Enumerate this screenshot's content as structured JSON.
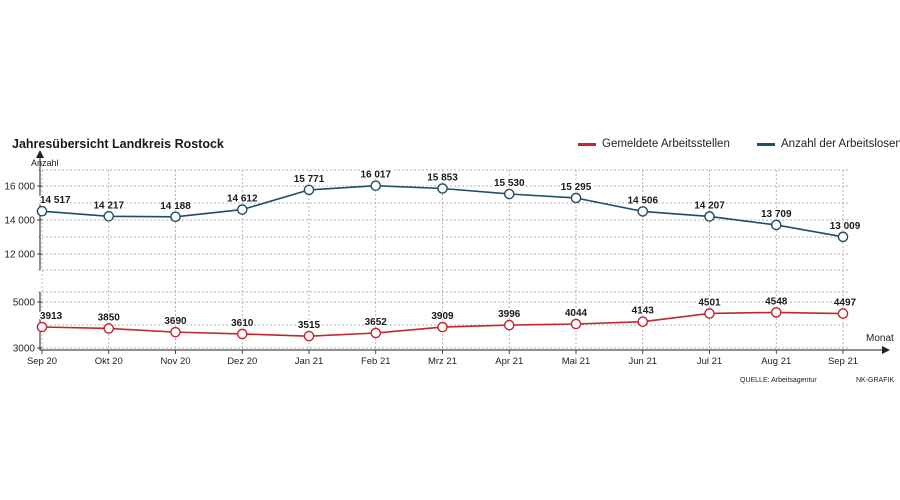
{
  "header": {
    "title": "Jahresübersicht Landkreis Rostock",
    "legend": [
      {
        "label": "Gemeldete Arbeitsstellen",
        "color": "#c0282d"
      },
      {
        "label": "Anzahl der Arbeitslosen",
        "color": "#1f4e66"
      }
    ]
  },
  "footer": {
    "source": "QUELLE: Arbeitsagentur",
    "credit": "NK-GRAFIK"
  },
  "chart_data": {
    "type": "line",
    "categories": [
      "Sep 20",
      "Okt 20",
      "Nov 20",
      "Dez 20",
      "Jan 21",
      "Feb 21",
      "Mrz 21",
      "Apr 21",
      "Mai 21",
      "Jun 21",
      "Jul 21",
      "Aug 21",
      "Sep 21"
    ],
    "xlabel": "Monat",
    "ylabel": "Anzahl",
    "grid": true,
    "legend_position": "top-right",
    "panels": [
      {
        "series_name": "Anzahl der Arbeitslosen",
        "color": "#1f4e66",
        "ylim": [
          12000,
          16000
        ],
        "yticks": [
          12000,
          14000,
          16000
        ],
        "ytick_labels": [
          "12 000",
          "14 000",
          "16 000"
        ],
        "values": [
          14517,
          14217,
          14188,
          14612,
          15771,
          16017,
          15853,
          15530,
          15295,
          14506,
          14207,
          13709,
          13009
        ],
        "labels": [
          "14 517",
          "14 217",
          "14 188",
          "14 612",
          "15 771",
          "16 017",
          "15 853",
          "15 530",
          "15 295",
          "14 506",
          "14 207",
          "13 709",
          "13 009"
        ]
      },
      {
        "series_name": "Gemeldete Arbeitsstellen",
        "color": "#c0282d",
        "ylim": [
          3000,
          5000
        ],
        "yticks": [
          3000,
          5000
        ],
        "ytick_labels": [
          "3000",
          "5000"
        ],
        "values": [
          3913,
          3850,
          3690,
          3610,
          3515,
          3652,
          3909,
          3996,
          4044,
          4143,
          4501,
          4548,
          4497
        ],
        "labels": [
          "3913",
          "3850",
          "3690",
          "3610",
          "3515",
          "3652",
          "3909",
          "3996",
          "4044",
          "4143",
          "4501",
          "4548",
          "4497"
        ]
      }
    ]
  }
}
